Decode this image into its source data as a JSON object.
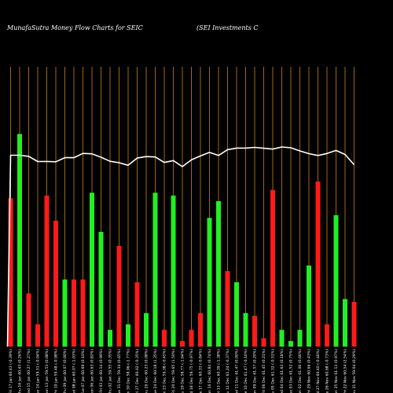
{
  "chart_data": {
    "type": "bar",
    "title": "MunafaSutra  Money Flow  Charts for SEIC",
    "subtitle": "(SEI Investments C",
    "ylim": [
      0,
      100
    ],
    "categories": [
      "Fri 17 Jan 60.43 (-0.39%)",
      "Thu 16 Jan 60.43 (0.26%)",
      "Wed 15 Jan 60.27 (1.27%)",
      "Tue 14 Jan 59.51 (-0.04%)",
      "Mon 13 Jan 59.53 (0.08%)",
      "Fri 10 Jan 59.48 (-0.98%)",
      "Thu 09 Jan 60.07 (0.00%)",
      "Wed 08 Jan 60.07 (-1.03%)",
      "Tue 07 Jan 60.69 (0.10%)",
      "Mon 06 Jan 60.63 (0.82%)",
      "Fri 03 Jan 60.14 (0.99%)",
      "Thu 02 Jan 59.55 (0.35%)",
      "Tue 31 Dec 59.34 (0.65%)",
      "Mon 30 Dec 58.96 (-1.77%)",
      "Fri 27 Dec 60.02 (-0.35%)",
      "Thu 26 Dec 60.23 (0.08%)",
      "Tue 24 Dec 60.18 (1.35%)",
      "Mon 23 Dec 59.38 (-0.45%)",
      "Fri 20 Dec 59.65 (1.50%)",
      "Thu 19 Dec 58.77 (-1.64%)",
      "Wed 18 Dec 59.75 (-0.97%)",
      "Tue 17 Dec 60.33 (-0.84%)",
      "Mon 16 Dec 60.84 (0.74%)",
      "Fri 13 Dec 60.39 (-1.38%)",
      "Thu 12 Dec 61.24 (-0.37%)",
      "Wed 11 Dec 61.47 (0.00%)",
      "Tue 10 Dec 61.47 (-0.16%)",
      "Mon 09 Dec 61.57 (0.20%)",
      "Fri 06 Dec 61.45 (0.21%)",
      "Thu 05 Dec 61.32 (-0.51%)",
      "Wed 04 Dec 61.63 (0.18%)",
      "Tue 03 Dec 61.52 (0.75%)",
      "Mon 02 Dec 61.06 (0.66%)",
      "Fri 29 Nov 60.66 (0.43%)",
      "Wed 27 Nov 60.40 (-0.46%)",
      "Tue 26 Nov 60.68 (-0.73%)",
      "Mon 25 Nov 61.13 (0.97%)",
      "Fri 22 Nov 60.54 (2.54%)",
      "Thu 21 Nov 59.04 (0.29%)"
    ],
    "series": [
      {
        "role": "money-flow",
        "colors": [
          "red",
          "green",
          "red",
          "red",
          "red",
          "red",
          "green",
          "red",
          "red",
          "green",
          "green",
          "green",
          "red",
          "green",
          "red",
          "green",
          "green",
          "red",
          "green",
          "red",
          "red",
          "red",
          "green",
          "green",
          "red",
          "green",
          "green",
          "red",
          "red",
          "red",
          "green",
          "green",
          "green",
          "green",
          "red",
          "red",
          "green",
          "green",
          "red"
        ],
        "values": [
          53,
          76,
          19,
          8,
          54,
          45,
          24,
          24,
          24,
          55,
          41,
          6,
          36,
          8,
          23,
          12,
          55,
          6,
          54,
          2,
          6,
          12,
          46,
          52,
          27,
          23,
          12,
          11,
          3,
          56,
          6,
          2,
          6,
          29,
          59,
          8,
          47,
          17,
          16
        ]
      },
      {
        "role": "price",
        "values": [
          60.43,
          60.43,
          60.27,
          59.51,
          59.53,
          59.48,
          60.07,
          60.07,
          60.69,
          60.63,
          60.14,
          59.55,
          59.34,
          58.96,
          60.02,
          60.23,
          60.18,
          59.38,
          59.65,
          58.77,
          59.75,
          60.33,
          60.84,
          60.39,
          61.24,
          61.47,
          61.47,
          61.57,
          61.45,
          61.32,
          61.63,
          61.52,
          61.06,
          60.66,
          60.4,
          60.68,
          61.13,
          60.54,
          59.04
        ]
      }
    ]
  }
}
